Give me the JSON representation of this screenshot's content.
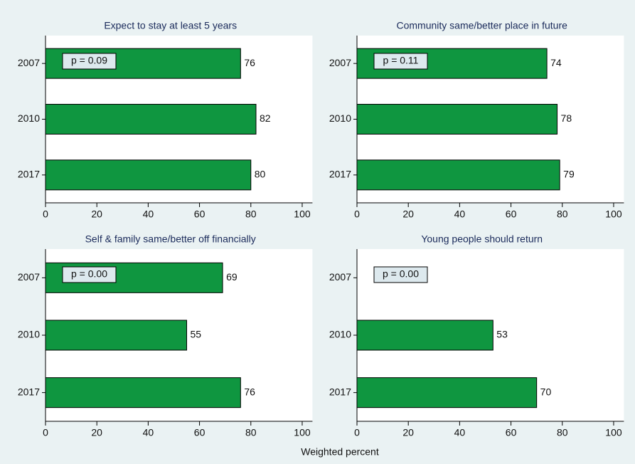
{
  "chart_data": [
    {
      "type": "bar",
      "title": "Expect to stay at least 5 years",
      "annotation": "p = 0.09",
      "categories": [
        "2007",
        "2010",
        "2017"
      ],
      "values": [
        76,
        82,
        80
      ],
      "color": "#0f9640",
      "xlim": [
        0,
        104
      ],
      "xticks": [
        0,
        20,
        40,
        60,
        80,
        100
      ]
    },
    {
      "type": "bar",
      "title": "Community same/better place in future",
      "annotation": "p = 0.11",
      "categories": [
        "2007",
        "2010",
        "2017"
      ],
      "values": [
        74,
        78,
        79
      ],
      "color": "#0f9640",
      "xlim": [
        0,
        104
      ],
      "xticks": [
        0,
        20,
        40,
        60,
        80,
        100
      ]
    },
    {
      "type": "bar",
      "title": "Self & family same/better off financially",
      "annotation": "p = 0.00",
      "categories": [
        "2007",
        "2010",
        "2017"
      ],
      "values": [
        69,
        55,
        76
      ],
      "color": "#0f9640",
      "xlim": [
        0,
        104
      ],
      "xticks": [
        0,
        20,
        40,
        60,
        80,
        100
      ]
    },
    {
      "type": "bar",
      "title": "Young people should return",
      "annotation": "p = 0.00",
      "categories": [
        "2007",
        "2010",
        "2017"
      ],
      "values": [
        null,
        53,
        70
      ],
      "color": "#0f9640",
      "xlim": [
        0,
        104
      ],
      "xticks": [
        0,
        20,
        40,
        60,
        80,
        100
      ]
    }
  ],
  "xlabel": "Weighted percent"
}
